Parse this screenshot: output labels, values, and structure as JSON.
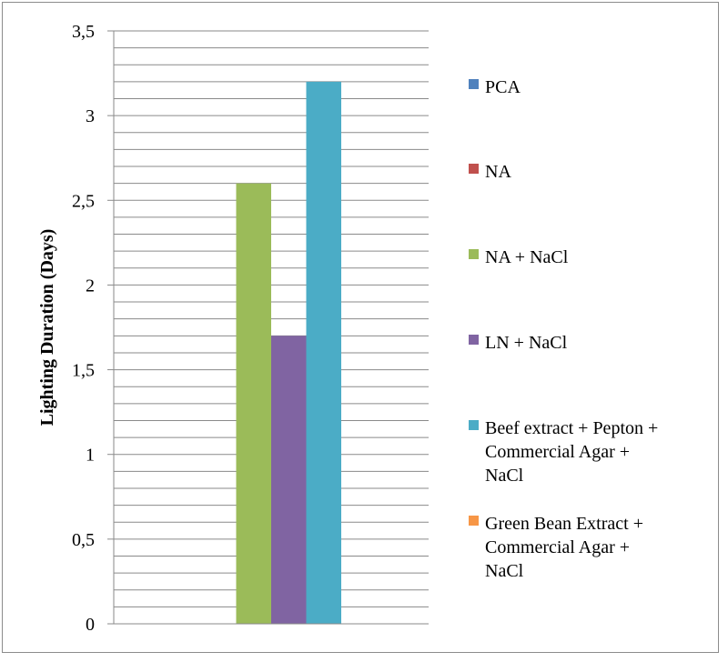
{
  "chart_data": {
    "type": "bar",
    "ylabel": "Lighting  Duration  (Days)",
    "xlabel": "",
    "ylim": [
      0,
      3.5
    ],
    "y_ticks": [
      "0",
      "0,5",
      "1",
      "1,5",
      "2",
      "2,5",
      "3",
      "3,5"
    ],
    "y_tick_values": [
      0,
      0.5,
      1,
      1.5,
      2,
      2.5,
      3,
      3.5
    ],
    "minor_grid_step": 0.1,
    "grid": true,
    "legend_position": "right",
    "categories": [
      ""
    ],
    "series": [
      {
        "name": "PCA",
        "values": [
          0
        ],
        "color": "#4f81bd"
      },
      {
        "name": "NA",
        "values": [
          0
        ],
        "color": "#c0504d"
      },
      {
        "name": "NA + NaCl",
        "values": [
          2.6
        ],
        "color": "#9bbb59"
      },
      {
        "name": "LN + NaCl",
        "values": [
          1.7
        ],
        "color": "#8064a2"
      },
      {
        "name": "Beef extract + Pepton + Commercial Agar + NaCl",
        "legend_lines": [
          "Beef extract + Pepton +",
          "Commercial Agar +",
          "NaCl"
        ],
        "values": [
          3.2
        ],
        "color": "#4bacc6"
      },
      {
        "name": "Green Bean Extract + Commercial Agar + NaCl",
        "legend_lines": [
          "Green Bean Extract +",
          "Commercial Agar +",
          "NaCl"
        ],
        "values": [
          0
        ],
        "color": "#f79646"
      }
    ]
  }
}
